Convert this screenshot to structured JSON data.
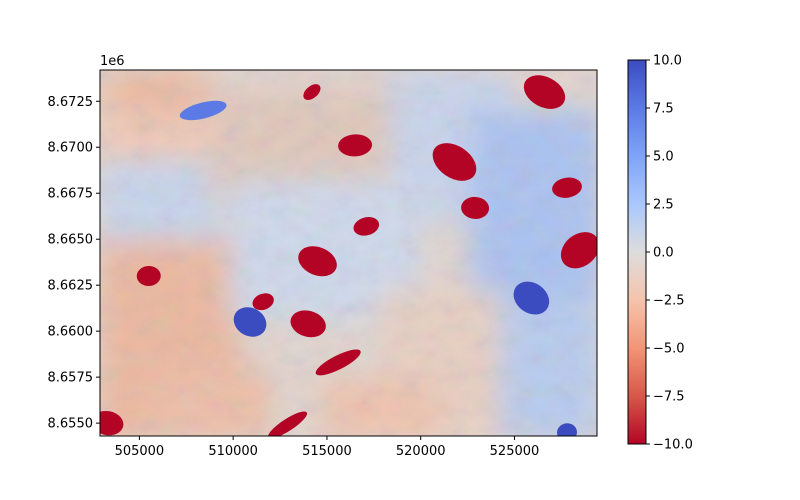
{
  "chart_data": {
    "type": "heatmap",
    "title": "",
    "xlabel": "",
    "ylabel": "",
    "x_range": [
      502900,
      529400
    ],
    "y_range": [
      8654300,
      8674200
    ],
    "x_ticks": [
      505000,
      510000,
      515000,
      520000,
      525000
    ],
    "x_tick_labels": [
      "505000",
      "510000",
      "515000",
      "520000",
      "525000"
    ],
    "y_ticks": [
      8655000,
      8657500,
      8660000,
      8662500,
      8665000,
      8667500,
      8670000,
      8672500
    ],
    "y_tick_labels": [
      "8.6550",
      "8.6575",
      "8.6600",
      "8.6625",
      "8.6650",
      "8.6675",
      "8.6700",
      "8.6725"
    ],
    "y_offset_label": "1e6",
    "colormap": "coolwarm_r",
    "vmin": -10.0,
    "vmax": 10.0,
    "colorbar_ticks": [
      10.0,
      7.5,
      5.0,
      2.5,
      0.0,
      -2.5,
      -5.0,
      -7.5,
      -10.0
    ],
    "colorbar_tick_labels": [
      "10.0",
      "7.5",
      "5.0",
      "2.5",
      "0.0",
      "−2.5",
      "−5.0",
      "−7.5",
      "−10.0"
    ],
    "colors": {
      "max_blue": "#3b4cc0",
      "neutral": "#dddddd",
      "min_red": "#b40426"
    },
    "features": [
      {
        "kind": "strong_negative",
        "x": 514200,
        "y": 8673000,
        "value": -10
      },
      {
        "kind": "strong_negative",
        "x": 516500,
        "y": 8670100,
        "value": -10
      },
      {
        "kind": "strong_negative",
        "x": 521800,
        "y": 8669200,
        "value": -10
      },
      {
        "kind": "strong_negative",
        "x": 527800,
        "y": 8667800,
        "value": -10
      },
      {
        "kind": "strong_negative",
        "x": 526600,
        "y": 8673000,
        "value": -10
      },
      {
        "kind": "strong_negative",
        "x": 517100,
        "y": 8665700,
        "value": -10
      },
      {
        "kind": "strong_negative",
        "x": 514500,
        "y": 8663800,
        "value": -10
      },
      {
        "kind": "strong_negative",
        "x": 511600,
        "y": 8661600,
        "value": -10
      },
      {
        "kind": "strong_negative",
        "x": 514000,
        "y": 8660400,
        "value": -10
      },
      {
        "kind": "strong_negative",
        "x": 515600,
        "y": 8658300,
        "value": -10
      },
      {
        "kind": "strong_negative",
        "x": 503300,
        "y": 8655000,
        "value": -10
      },
      {
        "kind": "strong_negative",
        "x": 512900,
        "y": 8654900,
        "value": -10
      },
      {
        "kind": "strong_negative",
        "x": 522900,
        "y": 8666700,
        "value": -10
      },
      {
        "kind": "strong_negative",
        "x": 528500,
        "y": 8664400,
        "value": -10
      },
      {
        "kind": "strong_negative",
        "x": 505500,
        "y": 8663000,
        "value": -10
      },
      {
        "kind": "strong_positive",
        "x": 525900,
        "y": 8661800,
        "value": 10
      },
      {
        "kind": "strong_positive",
        "x": 527800,
        "y": 8654500,
        "value": 10
      },
      {
        "kind": "strong_positive",
        "x": 510900,
        "y": 8660500,
        "value": 10
      },
      {
        "kind": "strong_positive",
        "x": 508400,
        "y": 8672000,
        "value": 8
      }
    ]
  }
}
